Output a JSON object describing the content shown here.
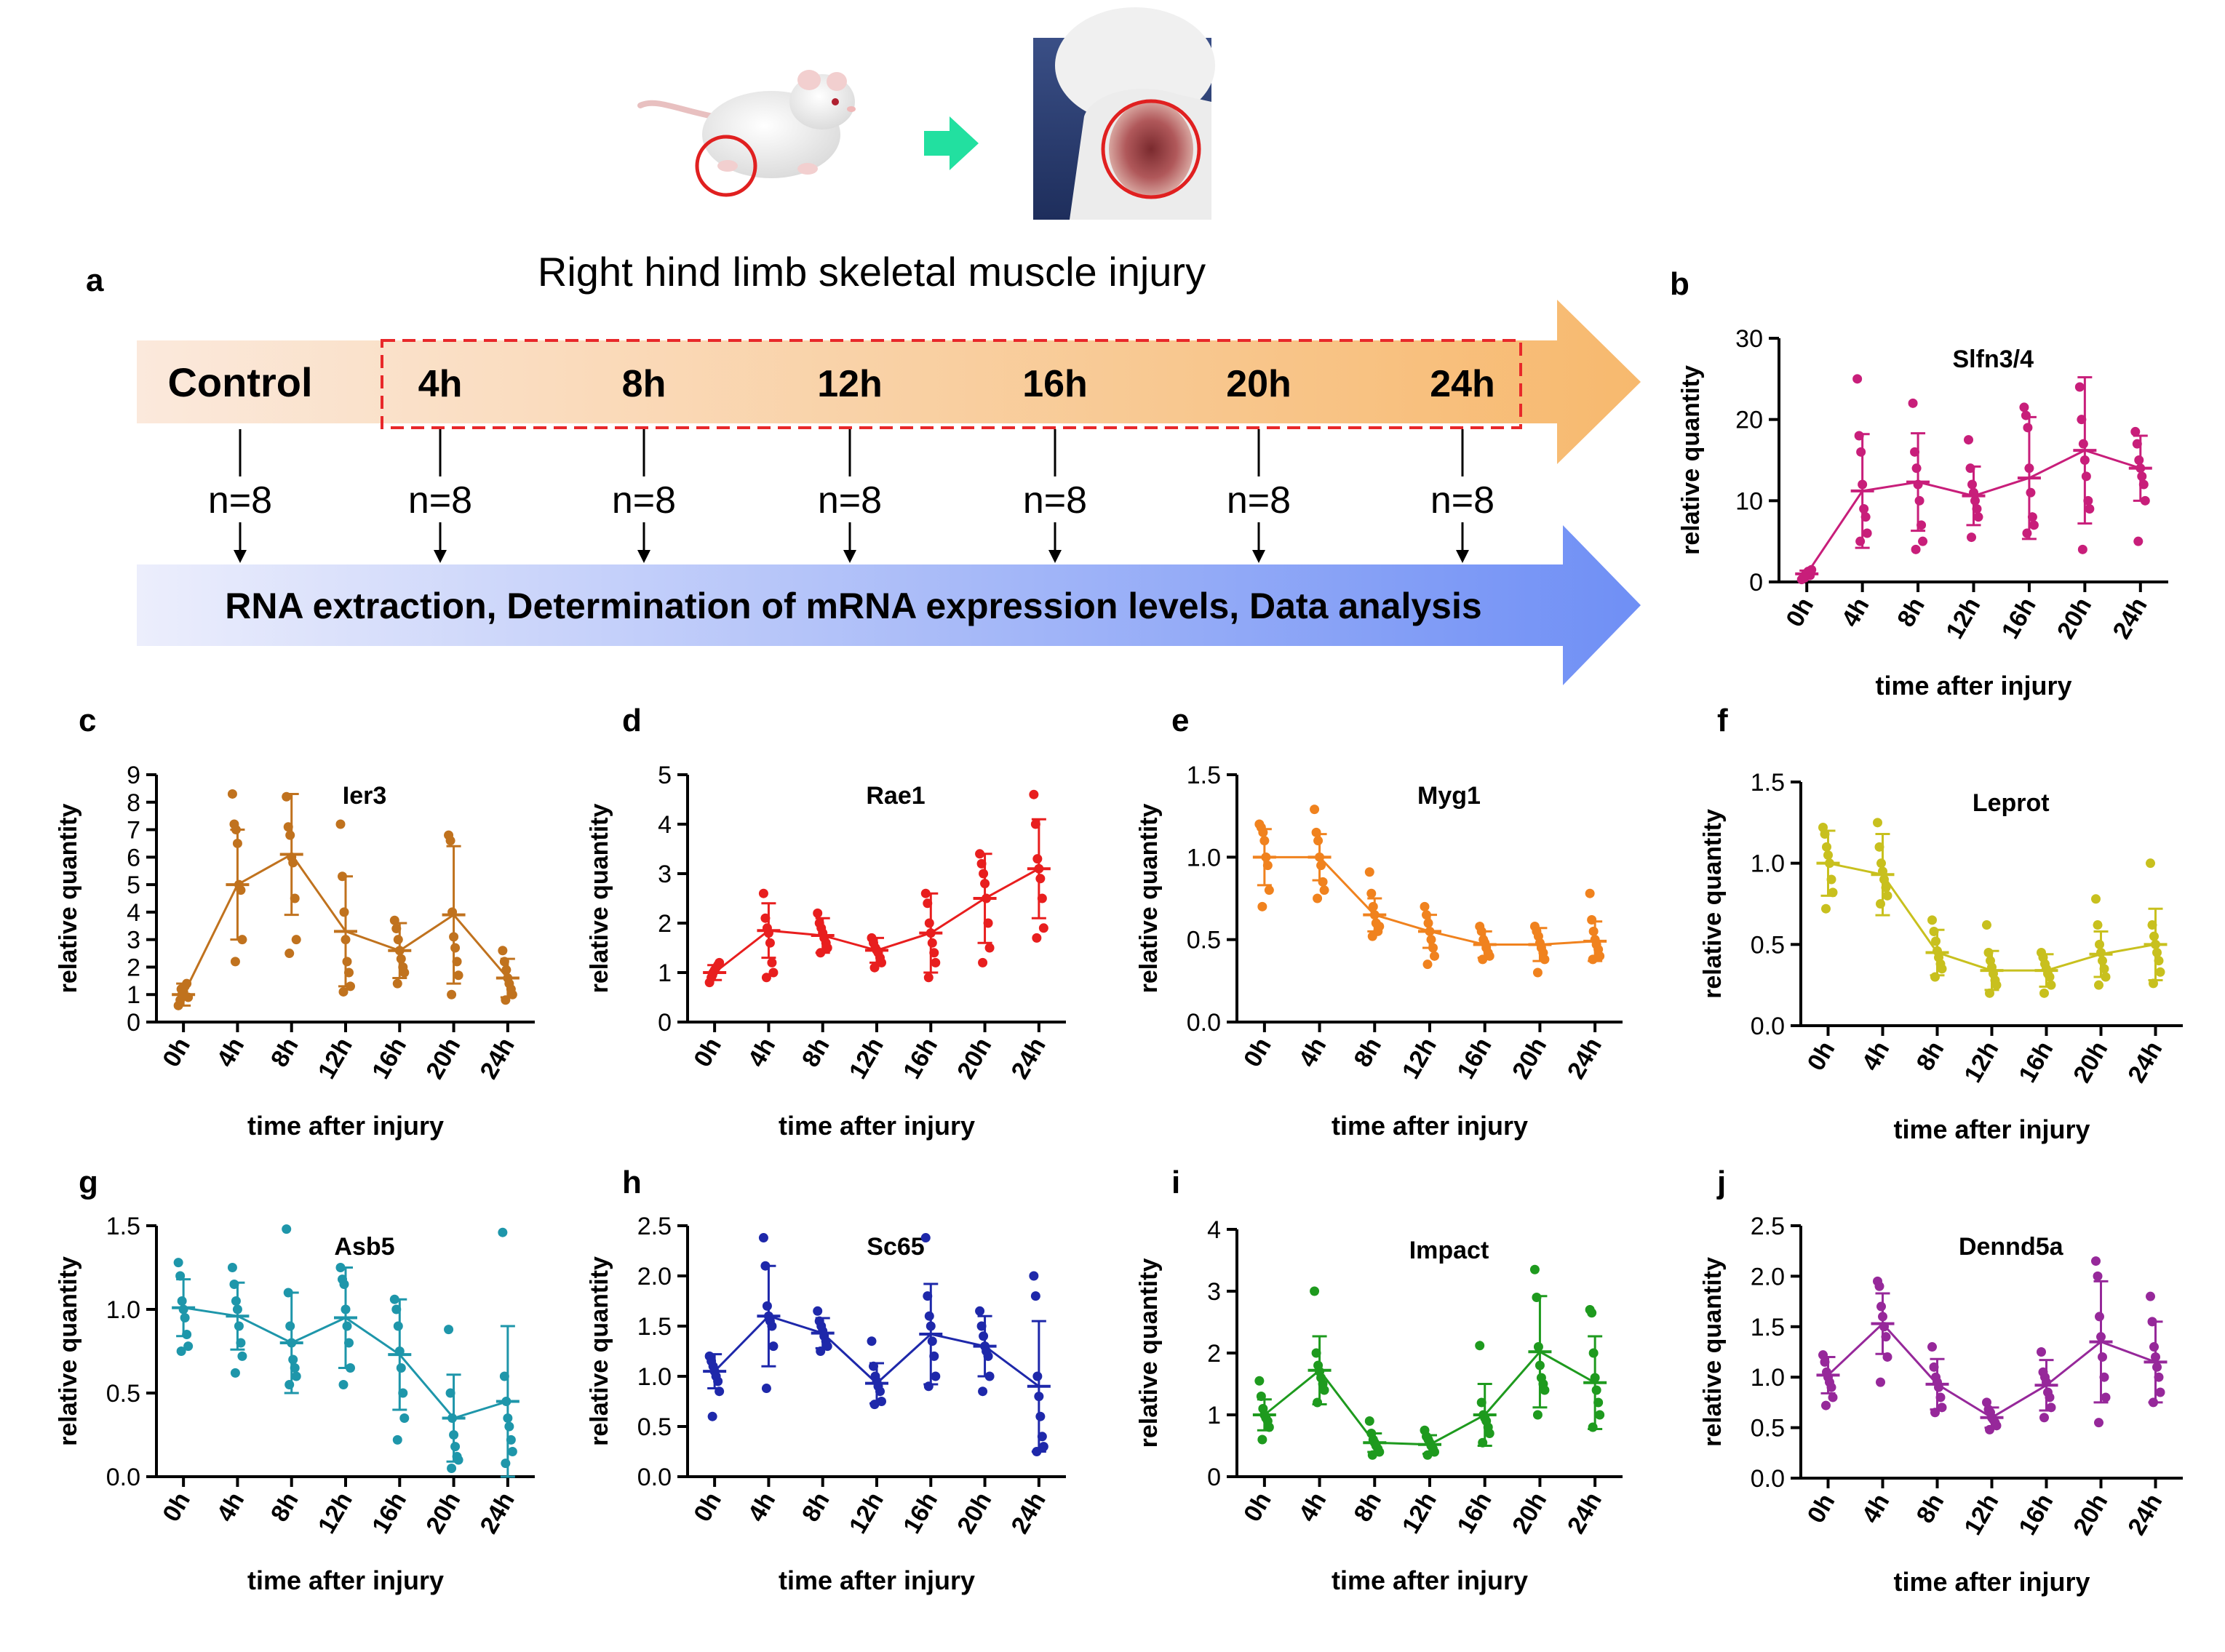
{
  "header_images": {
    "rat_alt": "white rat with circled right hind limb",
    "wound_alt": "close-up of hind limb wound",
    "colors": {
      "circle": "#e02020",
      "arrow": "#22e0a0",
      "arrow_dark": "#10b080"
    }
  },
  "diagram": {
    "panel_letter": "a",
    "title": "Right hind limb skeletal muscle injury",
    "control_label": "Control",
    "timepoints": [
      "4h",
      "8h",
      "12h",
      "16h",
      "20h",
      "24h"
    ],
    "n_labels": [
      "n=8",
      "n=8",
      "n=8",
      "n=8",
      "n=8",
      "n=8",
      "n=8"
    ],
    "bottom_label": "RNA extraction, Determination of mRNA expression levels, Data analysis",
    "colors": {
      "orange_start": "#fbe9dc",
      "orange_end": "#f7b96e",
      "blue_start": "#e8eafb",
      "blue_end": "#6f8ff5",
      "dash": "#e8282a"
    }
  },
  "chart_data": [
    {
      "panel": "b",
      "type": "scatter",
      "title": "Slfn3/4",
      "color": "#c81e7a",
      "categories": [
        "0h",
        "4h",
        "8h",
        "12h",
        "16h",
        "20h",
        "24h"
      ],
      "ylim": [
        0,
        30
      ],
      "yticks": [
        "0",
        "10",
        "20",
        "30"
      ],
      "ytick_values": [
        0,
        10,
        20,
        30
      ],
      "ylabel": "relative quantity",
      "xlabel": "time after injury",
      "means": [
        1.0,
        11.2,
        12.3,
        10.6,
        12.8,
        16.2,
        14.0
      ],
      "sd": [
        0.4,
        7.0,
        6.0,
        3.6,
        7.5,
        9.0,
        4.0
      ],
      "points": [
        [
          0.3,
          0.6,
          0.9,
          1.1,
          1.3,
          0.8,
          1.5,
          0.5
        ],
        [
          25,
          18,
          16,
          12,
          9,
          8,
          6,
          5
        ],
        [
          22,
          16,
          14,
          12,
          10,
          7,
          5,
          4
        ],
        [
          17.5,
          14,
          12,
          11,
          10,
          9,
          8,
          5.5
        ],
        [
          21.5,
          20.5,
          19,
          14,
          11,
          8,
          7,
          6
        ],
        [
          24,
          20,
          17,
          15,
          13,
          10,
          9,
          4
        ],
        [
          18.5,
          17,
          15,
          14,
          13,
          12,
          10,
          5
        ]
      ]
    },
    {
      "panel": "c",
      "type": "scatter",
      "title": "Ier3",
      "color": "#c0721e",
      "categories": [
        "0h",
        "4h",
        "8h",
        "12h",
        "16h",
        "20h",
        "24h"
      ],
      "ylim": [
        0,
        9
      ],
      "yticks": [
        "0",
        "1",
        "2",
        "3",
        "4",
        "5",
        "6",
        "7",
        "8",
        "9"
      ],
      "ytick_values": [
        0,
        1,
        2,
        3,
        4,
        5,
        6,
        7,
        8,
        9
      ],
      "ylabel": "relative quantity",
      "xlabel": "time after injury",
      "means": [
        1.0,
        5.0,
        6.1,
        3.3,
        2.6,
        3.9,
        1.6
      ],
      "sd": [
        0.4,
        2.0,
        2.2,
        2.0,
        1.0,
        2.5,
        0.7
      ],
      "points": [
        [
          0.6,
          0.8,
          1.0,
          1.1,
          1.3,
          1.4,
          0.9,
          1.2
        ],
        [
          8.3,
          7.2,
          7.0,
          6.5,
          5.0,
          4.8,
          3.0,
          2.2
        ],
        [
          8.2,
          7.1,
          6.8,
          6.0,
          5.8,
          4.5,
          3.0,
          2.5
        ],
        [
          7.2,
          5.3,
          4.0,
          3.0,
          2.2,
          1.8,
          1.3,
          1.1
        ],
        [
          3.7,
          3.4,
          3.0,
          2.6,
          2.3,
          2.0,
          1.8,
          1.4
        ],
        [
          6.8,
          6.6,
          4.0,
          3.1,
          2.7,
          2.2,
          1.7,
          1.0
        ],
        [
          2.6,
          2.2,
          1.9,
          1.6,
          1.4,
          1.2,
          1.0,
          0.8
        ]
      ]
    },
    {
      "panel": "d",
      "type": "scatter",
      "title": "Rae1",
      "color": "#e81e1e",
      "categories": [
        "0h",
        "4h",
        "8h",
        "12h",
        "16h",
        "20h",
        "24h"
      ],
      "ylim": [
        0,
        5
      ],
      "yticks": [
        "0",
        "1",
        "2",
        "3",
        "4",
        "5"
      ],
      "ytick_values": [
        0,
        1,
        2,
        3,
        4,
        5
      ],
      "ylabel": "relative quantity",
      "xlabel": "time after injury",
      "means": [
        1.0,
        1.85,
        1.75,
        1.45,
        1.8,
        2.5,
        3.1
      ],
      "sd": [
        0.15,
        0.55,
        0.35,
        0.25,
        0.8,
        0.9,
        1.0
      ],
      "points": [
        [
          0.8,
          0.9,
          1.0,
          1.05,
          1.1,
          1.15,
          1.2,
          0.95
        ],
        [
          2.6,
          2.1,
          1.9,
          1.8,
          1.6,
          1.2,
          1.0,
          0.9
        ],
        [
          2.2,
          2.0,
          1.9,
          1.8,
          1.7,
          1.6,
          1.5,
          1.4
        ],
        [
          1.7,
          1.6,
          1.5,
          1.45,
          1.4,
          1.3,
          1.2,
          1.1
        ],
        [
          2.6,
          2.4,
          2.0,
          1.8,
          1.6,
          1.4,
          1.2,
          0.9
        ],
        [
          3.4,
          3.2,
          3.0,
          2.8,
          2.5,
          2.0,
          1.5,
          1.2
        ],
        [
          4.6,
          4.0,
          3.3,
          3.1,
          2.9,
          2.5,
          1.9,
          1.7
        ]
      ]
    },
    {
      "panel": "e",
      "type": "scatter",
      "title": "Myg1",
      "color": "#f0821e",
      "categories": [
        "0h",
        "4h",
        "8h",
        "12h",
        "16h",
        "20h",
        "24h"
      ],
      "ylim": [
        0,
        1.5
      ],
      "yticks": [
        "0.0",
        "0.5",
        "1.0",
        "1.5"
      ],
      "ytick_values": [
        0,
        0.5,
        1,
        1.5
      ],
      "ylabel": "relative quantity",
      "xlabel": "time after injury",
      "means": [
        1.0,
        1.0,
        0.65,
        0.55,
        0.47,
        0.47,
        0.49
      ],
      "sd": [
        0.17,
        0.14,
        0.1,
        0.1,
        0.08,
        0.1,
        0.12
      ],
      "points": [
        [
          1.2,
          1.18,
          1.15,
          1.1,
          1.0,
          0.95,
          0.8,
          0.7
        ],
        [
          1.29,
          1.15,
          1.1,
          1.0,
          0.95,
          0.85,
          0.8,
          0.75
        ],
        [
          0.91,
          0.78,
          0.7,
          0.65,
          0.6,
          0.55,
          0.58,
          0.52
        ],
        [
          0.7,
          0.65,
          0.6,
          0.55,
          0.5,
          0.45,
          0.4,
          0.35
        ],
        [
          0.58,
          0.55,
          0.5,
          0.48,
          0.45,
          0.42,
          0.4,
          0.38
        ],
        [
          0.58,
          0.55,
          0.52,
          0.48,
          0.45,
          0.42,
          0.38,
          0.3
        ],
        [
          0.78,
          0.62,
          0.55,
          0.5,
          0.47,
          0.44,
          0.4,
          0.38
        ]
      ]
    },
    {
      "panel": "f",
      "type": "scatter",
      "title": "Leprot",
      "color": "#c8c01e",
      "categories": [
        "0h",
        "4h",
        "8h",
        "12h",
        "16h",
        "20h",
        "24h"
      ],
      "ylim": [
        0,
        1.5
      ],
      "yticks": [
        "0.0",
        "0.5",
        "1.0",
        "1.5"
      ],
      "ytick_values": [
        0,
        0.5,
        1,
        1.5
      ],
      "ylabel": "relative quantity",
      "xlabel": "time after injury",
      "means": [
        1.0,
        0.93,
        0.45,
        0.34,
        0.34,
        0.44,
        0.5
      ],
      "sd": [
        0.2,
        0.25,
        0.14,
        0.12,
        0.1,
        0.14,
        0.22
      ],
      "points": [
        [
          1.22,
          1.18,
          1.1,
          1.05,
          1.0,
          0.9,
          0.82,
          0.72
        ],
        [
          1.25,
          1.1,
          1.0,
          0.95,
          0.9,
          0.85,
          0.8,
          0.75
        ],
        [
          0.65,
          0.58,
          0.52,
          0.46,
          0.42,
          0.38,
          0.35,
          0.3
        ],
        [
          0.62,
          0.45,
          0.4,
          0.36,
          0.32,
          0.28,
          0.25,
          0.2
        ],
        [
          0.45,
          0.42,
          0.38,
          0.35,
          0.32,
          0.3,
          0.25,
          0.2
        ],
        [
          0.78,
          0.62,
          0.5,
          0.45,
          0.4,
          0.35,
          0.3,
          0.25
        ],
        [
          1.0,
          0.62,
          0.55,
          0.5,
          0.45,
          0.4,
          0.33,
          0.26
        ]
      ]
    },
    {
      "panel": "g",
      "type": "scatter",
      "title": "Asb5",
      "color": "#1e96aa",
      "categories": [
        "0h",
        "4h",
        "8h",
        "12h",
        "16h",
        "20h",
        "24h"
      ],
      "ylim": [
        0,
        1.5
      ],
      "yticks": [
        "0.0",
        "0.5",
        "1.0",
        "1.5"
      ],
      "ytick_values": [
        0,
        0.5,
        1,
        1.5
      ],
      "ylabel": "relative quantity",
      "xlabel": "time after injury",
      "means": [
        1.01,
        0.96,
        0.8,
        0.95,
        0.73,
        0.35,
        0.45
      ],
      "sd": [
        0.17,
        0.2,
        0.3,
        0.3,
        0.33,
        0.26,
        0.45
      ],
      "points": [
        [
          1.28,
          1.2,
          1.05,
          1.0,
          0.95,
          0.85,
          0.78,
          0.75
        ],
        [
          1.25,
          1.15,
          1.05,
          1.0,
          0.9,
          0.8,
          0.72,
          0.62
        ],
        [
          1.48,
          1.1,
          0.9,
          0.8,
          0.7,
          0.65,
          0.6,
          0.55
        ],
        [
          1.25,
          1.18,
          1.15,
          1.0,
          0.9,
          0.8,
          0.65,
          0.55
        ],
        [
          1.06,
          1.0,
          0.9,
          0.75,
          0.65,
          0.5,
          0.35,
          0.22
        ],
        [
          0.88,
          0.5,
          0.35,
          0.25,
          0.18,
          0.12,
          0.1,
          0.05
        ],
        [
          1.46,
          0.6,
          0.45,
          0.35,
          0.3,
          0.22,
          0.15,
          0.08
        ]
      ]
    },
    {
      "panel": "h",
      "type": "scatter",
      "title": "Sc65",
      "color": "#1e28aa",
      "categories": [
        "0h",
        "4h",
        "8h",
        "12h",
        "16h",
        "20h",
        "24h"
      ],
      "ylim": [
        0,
        2.5
      ],
      "yticks": [
        "0.0",
        "0.5",
        "1.0",
        "1.5",
        "2.0",
        "2.5"
      ],
      "ytick_values": [
        0,
        0.5,
        1,
        1.5,
        2,
        2.5
      ],
      "ylabel": "relative quantity",
      "xlabel": "time after injury",
      "means": [
        1.05,
        1.6,
        1.43,
        0.93,
        1.42,
        1.3,
        0.9
      ],
      "sd": [
        0.17,
        0.5,
        0.15,
        0.2,
        0.5,
        0.3,
        0.65
      ],
      "points": [
        [
          1.2,
          1.15,
          1.1,
          1.05,
          1.0,
          0.95,
          0.85,
          0.6
        ],
        [
          2.38,
          2.1,
          1.7,
          1.6,
          1.55,
          1.5,
          1.3,
          0.88
        ],
        [
          1.65,
          1.55,
          1.5,
          1.45,
          1.4,
          1.35,
          1.3,
          1.25
        ],
        [
          1.35,
          1.1,
          1.0,
          0.95,
          0.9,
          0.85,
          0.75,
          0.72
        ],
        [
          2.38,
          1.8,
          1.6,
          1.5,
          1.35,
          1.2,
          1.0,
          0.9
        ],
        [
          1.65,
          1.5,
          1.4,
          1.3,
          1.25,
          1.2,
          1.0,
          0.85
        ],
        [
          2.0,
          1.8,
          1.0,
          0.8,
          0.6,
          0.4,
          0.3,
          0.25
        ]
      ]
    },
    {
      "panel": "i",
      "type": "scatter",
      "title": "Impact",
      "color": "#1e9a1e",
      "categories": [
        "0h",
        "4h",
        "8h",
        "12h",
        "16h",
        "20h",
        "24h"
      ],
      "ylim": [
        0,
        4
      ],
      "yticks": [
        "0",
        "1",
        "2",
        "3",
        "4"
      ],
      "ytick_values": [
        0,
        1,
        2,
        3,
        4
      ],
      "ylabel": "relative quantity",
      "xlabel": "time after injury",
      "means": [
        1.0,
        1.72,
        0.55,
        0.52,
        1.0,
        2.02,
        1.52
      ],
      "sd": [
        0.25,
        0.55,
        0.15,
        0.15,
        0.5,
        0.9,
        0.75
      ],
      "points": [
        [
          1.55,
          1.3,
          1.1,
          1.0,
          0.95,
          0.9,
          0.8,
          0.6
        ],
        [
          3.0,
          2.0,
          1.8,
          1.7,
          1.6,
          1.5,
          1.4,
          1.2
        ],
        [
          0.9,
          0.7,
          0.6,
          0.55,
          0.5,
          0.45,
          0.4,
          0.35
        ],
        [
          0.75,
          0.65,
          0.6,
          0.55,
          0.5,
          0.45,
          0.4,
          0.35
        ],
        [
          2.12,
          1.2,
          1.0,
          0.95,
          0.9,
          0.8,
          0.7,
          0.55
        ],
        [
          3.35,
          2.9,
          2.1,
          1.8,
          1.6,
          1.5,
          1.4,
          1.0
        ],
        [
          2.7,
          2.65,
          2.0,
          1.6,
          1.4,
          1.2,
          1.0,
          0.8
        ]
      ]
    },
    {
      "panel": "j",
      "type": "scatter",
      "title": "Dennd5a",
      "color": "#96289a",
      "categories": [
        "0h",
        "4h",
        "8h",
        "12h",
        "16h",
        "20h",
        "24h"
      ],
      "ylim": [
        0,
        2.5
      ],
      "yticks": [
        "0.0",
        "0.5",
        "1.0",
        "1.5",
        "2.0",
        "2.5"
      ],
      "ytick_values": [
        0,
        0.5,
        1,
        1.5,
        2,
        2.5
      ],
      "ylabel": "relative quantity",
      "xlabel": "time after injury",
      "means": [
        1.02,
        1.53,
        0.93,
        0.6,
        0.92,
        1.35,
        1.15
      ],
      "sd": [
        0.18,
        0.3,
        0.25,
        0.1,
        0.25,
        0.6,
        0.4
      ],
      "points": [
        [
          1.22,
          1.15,
          1.05,
          1.0,
          0.95,
          0.9,
          0.8,
          0.72
        ],
        [
          1.95,
          1.9,
          1.7,
          1.6,
          1.5,
          1.4,
          1.2,
          0.95
        ],
        [
          1.3,
          1.1,
          1.0,
          0.95,
          0.9,
          0.8,
          0.7,
          0.65
        ],
        [
          0.75,
          0.68,
          0.65,
          0.6,
          0.58,
          0.55,
          0.52,
          0.48
        ],
        [
          1.25,
          1.05,
          1.0,
          0.95,
          0.85,
          0.8,
          0.7,
          0.6
        ],
        [
          2.15,
          2.0,
          1.6,
          1.4,
          1.2,
          1.0,
          0.8,
          0.55
        ],
        [
          1.8,
          1.55,
          1.3,
          1.2,
          1.1,
          1.0,
          0.85,
          0.75
        ]
      ]
    }
  ]
}
